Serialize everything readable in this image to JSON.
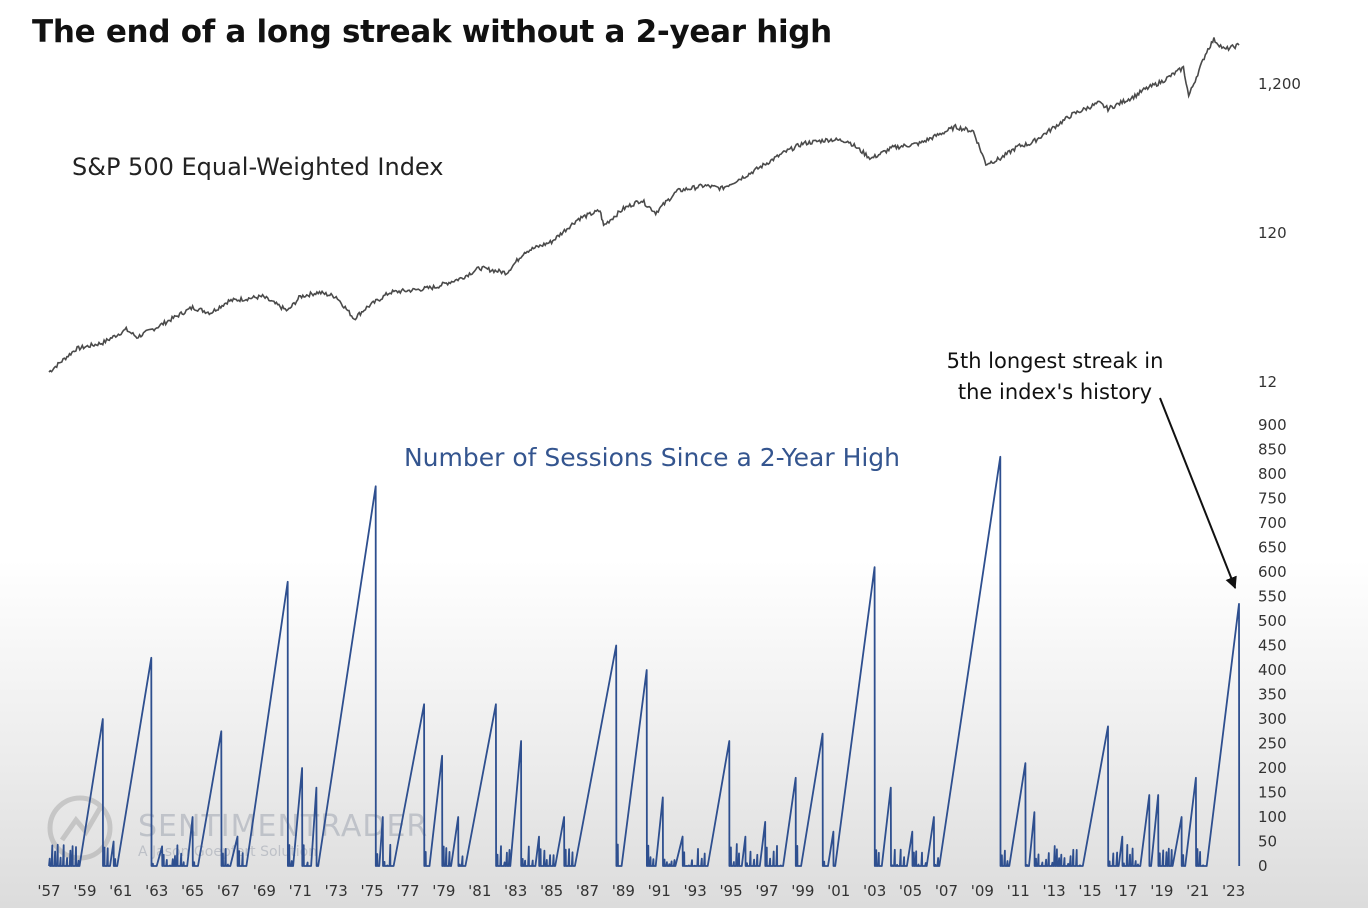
{
  "title": "The end of a long streak without a 2-year high",
  "watermark": {
    "line1": "SENTIMENTRADER",
    "line2": "A Jason Goepfert Solution"
  },
  "colors": {
    "index_line": "#4a4a4a",
    "sessions_line": "#2e4f8f",
    "sessions_label": "#34558f",
    "axis_text": "#333333"
  },
  "chart_data": [
    {
      "type": "line",
      "title": "S&P 500 Equal-Weighted Index",
      "yscale": "log",
      "ylim": [
        12,
        3000
      ],
      "yticks": [
        12,
        120,
        1200
      ],
      "ytick_labels": [
        "12",
        "120",
        "1,200"
      ],
      "x": [
        1957.0,
        1958.5,
        1960.0,
        1961.3,
        1961.9,
        1963.0,
        1965.0,
        1966.0,
        1967.0,
        1968.9,
        1970.3,
        1971.0,
        1972.0,
        1973.0,
        1974.0,
        1974.7,
        1976.0,
        1977.5,
        1978.5,
        1980.0,
        1981.0,
        1982.5,
        1983.5,
        1985.0,
        1986.5,
        1987.7,
        1987.9,
        1989.0,
        1990.0,
        1990.8,
        1992.0,
        1993.5,
        1994.5,
        1996.0,
        1998.0,
        1999.0,
        2000.5,
        2001.5,
        2002.8,
        2004.0,
        2005.5,
        2007.5,
        2008.5,
        2009.2,
        2010.0,
        2011.0,
        2011.7,
        2012.5,
        2014.0,
        2015.5,
        2016.0,
        2017.5,
        2018.0,
        2019.0,
        2020.2,
        2020.5,
        2021.5,
        2021.9,
        2022.5,
        2023.3
      ],
      "y": [
        14,
        20,
        22,
        27,
        24,
        28,
        38,
        35,
        42,
        45,
        36,
        45,
        48,
        45,
        32,
        38,
        48,
        50,
        52,
        60,
        70,
        65,
        90,
        105,
        150,
        170,
        135,
        175,
        200,
        165,
        230,
        250,
        240,
        300,
        420,
        480,
        510,
        500,
        380,
        450,
        480,
        620,
        580,
        350,
        380,
        460,
        480,
        560,
        750,
        900,
        820,
        1000,
        1100,
        1250,
        1550,
        1000,
        2000,
        2400,
        2050,
        2200
      ]
    },
    {
      "type": "line",
      "title": "Number of Sessions Since a 2-Year High",
      "ylim": [
        0,
        900
      ],
      "yticks": [
        0,
        50,
        100,
        150,
        200,
        250,
        300,
        350,
        400,
        450,
        500,
        550,
        600,
        650,
        700,
        750,
        800,
        850,
        900
      ],
      "x_tick_labels": [
        "'57",
        "'59",
        "'61",
        "'63",
        "'65",
        "'67",
        "'69",
        "'71",
        "'73",
        "'75",
        "'77",
        "'79",
        "'81",
        "'83",
        "'85",
        "'87",
        "'89",
        "'91",
        "'93",
        "'95",
        "'97",
        "'99",
        "'01",
        "'03",
        "'05",
        "'07",
        "'09",
        "'11",
        "'13",
        "'15",
        "'17",
        "'19",
        "'21",
        "'23"
      ],
      "x_ticks": [
        1957,
        1959,
        1961,
        1963,
        1965,
        1967,
        1969,
        1971,
        1973,
        1975,
        1977,
        1979,
        1981,
        1983,
        1985,
        1987,
        1989,
        1991,
        1993,
        1995,
        1997,
        1999,
        2001,
        2003,
        2005,
        2007,
        2009,
        2011,
        2013,
        2015,
        2017,
        2019,
        2021,
        2023
      ],
      "peaks": [
        {
          "start": 1958.7,
          "end": 1960.0,
          "value": 300
        },
        {
          "start": 1960.4,
          "end": 1960.6,
          "value": 50
        },
        {
          "start": 1960.8,
          "end": 1962.7,
          "value": 425
        },
        {
          "start": 1963.0,
          "end": 1963.3,
          "value": 40
        },
        {
          "start": 1964.7,
          "end": 1965.0,
          "value": 100
        },
        {
          "start": 1965.3,
          "end": 1966.6,
          "value": 275
        },
        {
          "start": 1967.1,
          "end": 1967.5,
          "value": 60
        },
        {
          "start": 1968.0,
          "end": 1970.3,
          "value": 580
        },
        {
          "start": 1970.6,
          "end": 1971.1,
          "value": 200
        },
        {
          "start": 1971.6,
          "end": 1971.9,
          "value": 160
        },
        {
          "start": 1972.0,
          "end": 1975.2,
          "value": 775
        },
        {
          "start": 1975.4,
          "end": 1975.6,
          "value": 100
        },
        {
          "start": 1976.2,
          "end": 1977.9,
          "value": 330
        },
        {
          "start": 1978.2,
          "end": 1978.9,
          "value": 225
        },
        {
          "start": 1979.4,
          "end": 1979.8,
          "value": 100
        },
        {
          "start": 1980.2,
          "end": 1981.9,
          "value": 330
        },
        {
          "start": 1982.7,
          "end": 1983.3,
          "value": 255
        },
        {
          "start": 1984.1,
          "end": 1984.3,
          "value": 60
        },
        {
          "start": 1985.2,
          "end": 1985.7,
          "value": 100
        },
        {
          "start": 1986.3,
          "end": 1988.6,
          "value": 450
        },
        {
          "start": 1988.9,
          "end": 1990.3,
          "value": 400
        },
        {
          "start": 1990.8,
          "end": 1991.2,
          "value": 140
        },
        {
          "start": 1991.9,
          "end": 1992.3,
          "value": 60
        },
        {
          "start": 1993.7,
          "end": 1994.9,
          "value": 255
        },
        {
          "start": 1995.6,
          "end": 1995.8,
          "value": 60
        },
        {
          "start": 1996.6,
          "end": 1996.9,
          "value": 90
        },
        {
          "start": 1997.9,
          "end": 1998.6,
          "value": 180
        },
        {
          "start": 1998.9,
          "end": 2000.1,
          "value": 270
        },
        {
          "start": 2000.4,
          "end": 2000.7,
          "value": 70
        },
        {
          "start": 2000.8,
          "end": 2003.0,
          "value": 610
        },
        {
          "start": 2003.4,
          "end": 2003.9,
          "value": 160
        },
        {
          "start": 2004.8,
          "end": 2005.1,
          "value": 70
        },
        {
          "start": 2005.9,
          "end": 2006.3,
          "value": 100
        },
        {
          "start": 2006.6,
          "end": 2010.0,
          "value": 835
        },
        {
          "start": 2010.5,
          "end": 2011.4,
          "value": 210
        },
        {
          "start": 2011.6,
          "end": 2011.9,
          "value": 110
        },
        {
          "start": 2014.6,
          "end": 2016.0,
          "value": 285
        },
        {
          "start": 2016.6,
          "end": 2016.8,
          "value": 60
        },
        {
          "start": 2017.8,
          "end": 2018.3,
          "value": 145
        },
        {
          "start": 2018.4,
          "end": 2018.8,
          "value": 145
        },
        {
          "start": 2019.6,
          "end": 2020.1,
          "value": 100
        },
        {
          "start": 2020.3,
          "end": 2020.9,
          "value": 180
        },
        {
          "start": 2021.5,
          "end": 2023.3,
          "value": 535
        }
      ],
      "annotation": {
        "line1": "5th longest streak in",
        "line2": "the index's history",
        "target_year": 2023.2,
        "target_value": 555
      }
    }
  ]
}
